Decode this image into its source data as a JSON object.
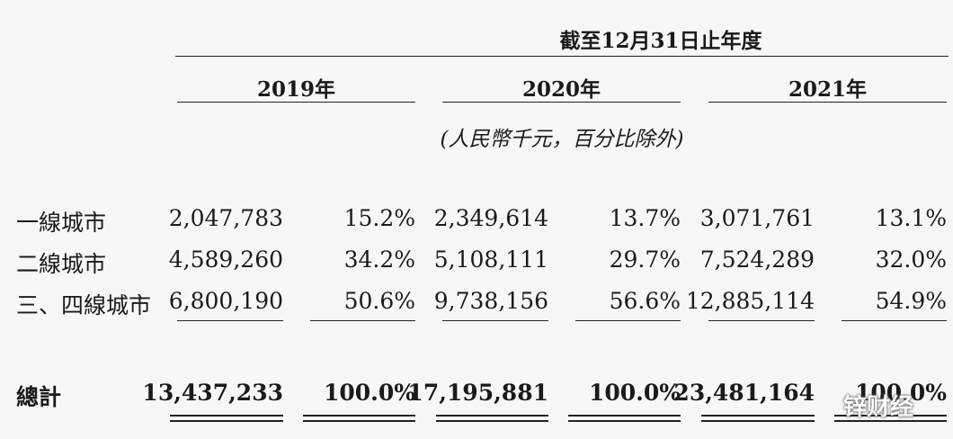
{
  "header": {
    "period": "截至12月31日止年度",
    "years": [
      "2019年",
      "2020年",
      "2021年"
    ],
    "unit_note": "(人民幣千元，百分比除外)"
  },
  "rows": [
    {
      "label": "一線城市",
      "values": [
        "2,047,783",
        "15.2%",
        "2,349,614",
        "13.7%",
        "3,071,761",
        "13.1%"
      ]
    },
    {
      "label": "二線城市",
      "values": [
        "4,589,260",
        "34.2%",
        "5,108,111",
        "29.7%",
        "7,524,289",
        "32.0%"
      ]
    },
    {
      "label": "三、四線城市",
      "values": [
        "6,800,190",
        "50.6%",
        "9,738,156",
        "56.6%",
        "12,885,114",
        "54.9%"
      ]
    }
  ],
  "total": {
    "label": "總計",
    "values": [
      "13,437,233",
      "100.0%",
      "17,195,881",
      "100.0%",
      "23,481,164",
      "100.0%"
    ]
  },
  "watermark": "锌财经"
}
